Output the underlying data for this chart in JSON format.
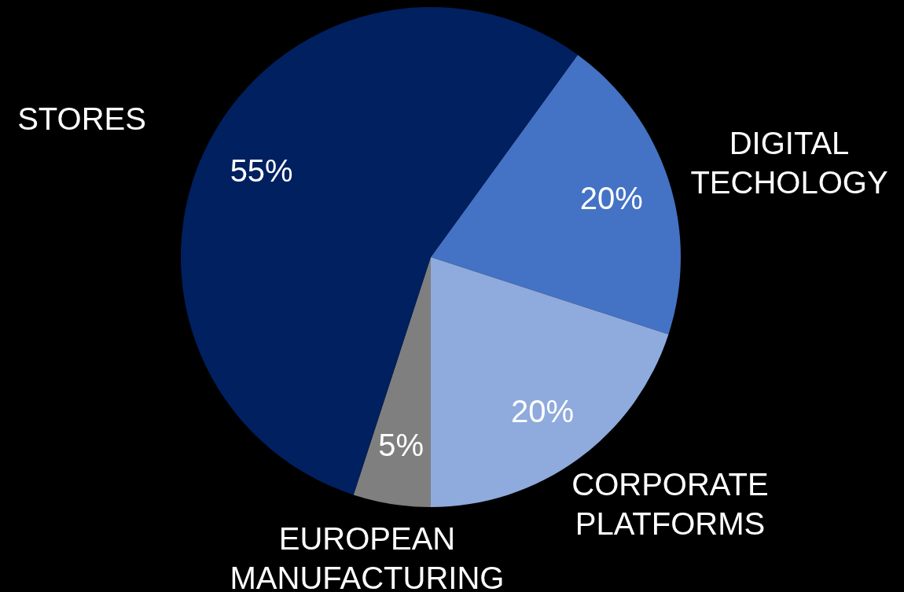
{
  "chart_data": {
    "type": "pie",
    "categories": [
      "DIGITAL TECHOLOGY",
      "CORPORATE PLATFORMS",
      "EUROPEAN MANUFACTURING",
      "STORES"
    ],
    "values": [
      20,
      20,
      5,
      55
    ],
    "value_labels": [
      "20%",
      "20%",
      "5%",
      "55%"
    ],
    "colors": [
      "#4472c4",
      "#8faadc",
      "#7f7f7f",
      "#002060"
    ],
    "legend": false
  }
}
